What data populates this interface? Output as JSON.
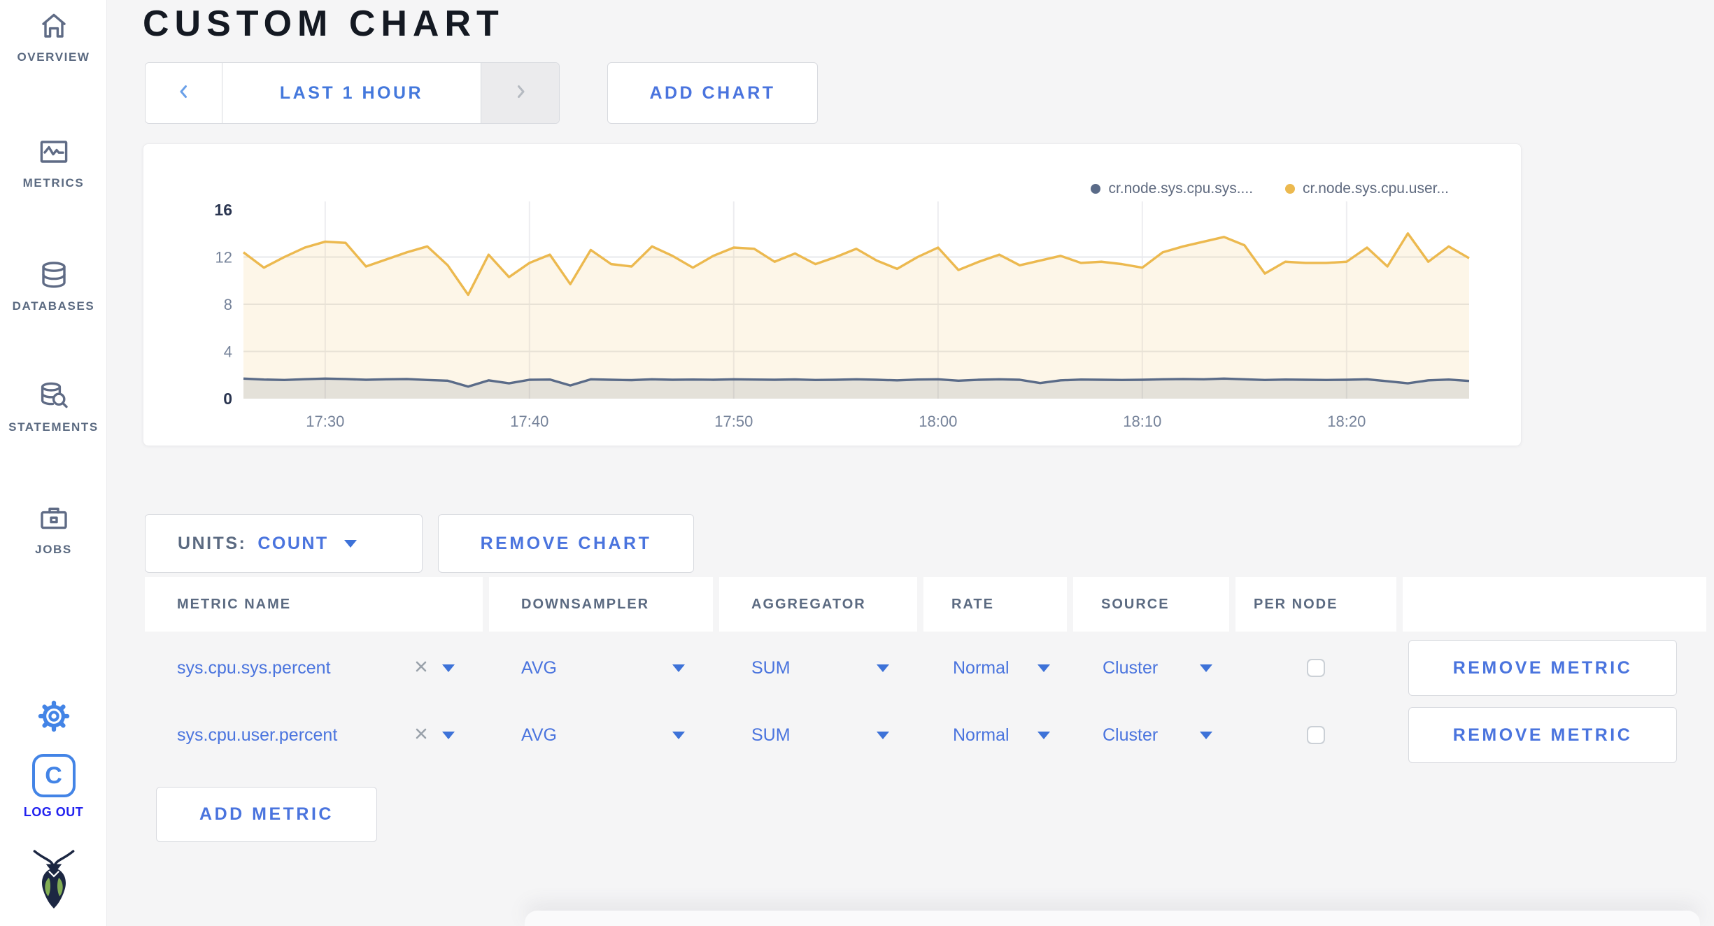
{
  "sidebar": {
    "items": [
      {
        "label": "OVERVIEW",
        "icon": "home-icon"
      },
      {
        "label": "METRICS",
        "icon": "metrics-icon"
      },
      {
        "label": "DATABASES",
        "icon": "databases-icon"
      },
      {
        "label": "STATEMENTS",
        "icon": "statements-icon"
      },
      {
        "label": "JOBS",
        "icon": "jobs-icon"
      }
    ],
    "logo_letter": "C",
    "logout_label": "LOG OUT"
  },
  "header": {
    "title": "CUSTOM CHART"
  },
  "toolbar": {
    "time_range_label": "LAST 1 HOUR",
    "add_chart_label": "ADD CHART"
  },
  "chart_controls": {
    "units_label": "UNITS:",
    "units_value": "COUNT",
    "remove_chart_label": "REMOVE CHART"
  },
  "metrics_table": {
    "headers": [
      "METRIC NAME",
      "DOWNSAMPLER",
      "AGGREGATOR",
      "RATE",
      "SOURCE",
      "PER NODE"
    ],
    "rows": [
      {
        "name": "sys.cpu.sys.percent",
        "downsampler": "AVG",
        "aggregator": "SUM",
        "rate": "Normal",
        "source": "Cluster",
        "per_node_checked": false,
        "remove_label": "REMOVE METRIC"
      },
      {
        "name": "sys.cpu.user.percent",
        "downsampler": "AVG",
        "aggregator": "SUM",
        "rate": "Normal",
        "source": "Cluster",
        "per_node_checked": false,
        "remove_label": "REMOVE METRIC"
      }
    ],
    "add_metric_label": "ADD METRIC"
  },
  "chart_data": {
    "type": "line",
    "title": "",
    "xlabel": "",
    "ylabel": "",
    "grid": true,
    "legend_position": "top-right",
    "ylim": [
      0,
      16
    ],
    "y_ticks": [
      0,
      4,
      8,
      12,
      16
    ],
    "x_ticks": [
      "17:30",
      "17:40",
      "17:50",
      "18:00",
      "18:10",
      "18:20"
    ],
    "x_tick_minutes": [
      4,
      14,
      24,
      34,
      44,
      54
    ],
    "x_range_minutes": [
      0,
      60
    ],
    "series": [
      {
        "name": "cr.node.sys.cpu.sys....",
        "color": "#5a6b88",
        "fill": "rgba(90,107,136,0.15)",
        "values": [
          1.7,
          1.62,
          1.58,
          1.65,
          1.7,
          1.66,
          1.6,
          1.64,
          1.66,
          1.58,
          1.52,
          1.02,
          1.55,
          1.3,
          1.6,
          1.62,
          1.12,
          1.64,
          1.6,
          1.57,
          1.64,
          1.6,
          1.62,
          1.6,
          1.64,
          1.62,
          1.6,
          1.63,
          1.58,
          1.6,
          1.64,
          1.6,
          1.55,
          1.62,
          1.64,
          1.52,
          1.6,
          1.64,
          1.6,
          1.32,
          1.55,
          1.62,
          1.6,
          1.58,
          1.6,
          1.64,
          1.66,
          1.64,
          1.7,
          1.64,
          1.58,
          1.62,
          1.6,
          1.58,
          1.6,
          1.64,
          1.48,
          1.3,
          1.55,
          1.62,
          1.5
        ]
      },
      {
        "name": "cr.node.sys.cpu.user...",
        "color": "#ecb94f",
        "fill": "rgba(236,185,79,0.13)",
        "values": [
          12.4,
          11.1,
          12.0,
          12.8,
          13.3,
          13.2,
          11.2,
          11.8,
          12.4,
          12.9,
          11.3,
          8.8,
          12.2,
          10.3,
          11.5,
          12.2,
          9.7,
          12.6,
          11.4,
          11.2,
          12.9,
          12.1,
          11.1,
          12.1,
          12.8,
          12.7,
          11.6,
          12.3,
          11.4,
          12.0,
          12.7,
          11.7,
          11.0,
          12.0,
          12.8,
          10.9,
          11.6,
          12.2,
          11.3,
          11.7,
          12.1,
          11.5,
          11.6,
          11.4,
          11.1,
          12.4,
          12.9,
          13.3,
          13.7,
          13.0,
          10.6,
          11.6,
          11.5,
          11.5,
          11.6,
          12.8,
          11.2,
          14.0,
          11.6,
          12.9,
          11.9
        ]
      }
    ]
  },
  "colors": {
    "accent_blue": "#4a74de",
    "logout_blue": "#2222ef",
    "icon_slate": "#5f6b85",
    "series_gray": "#5a6b88",
    "series_yellow": "#ecb94f",
    "grid_line": "#e7e8eb",
    "axis_label": "#76839a",
    "axis_label_strong": "#2a3550"
  }
}
